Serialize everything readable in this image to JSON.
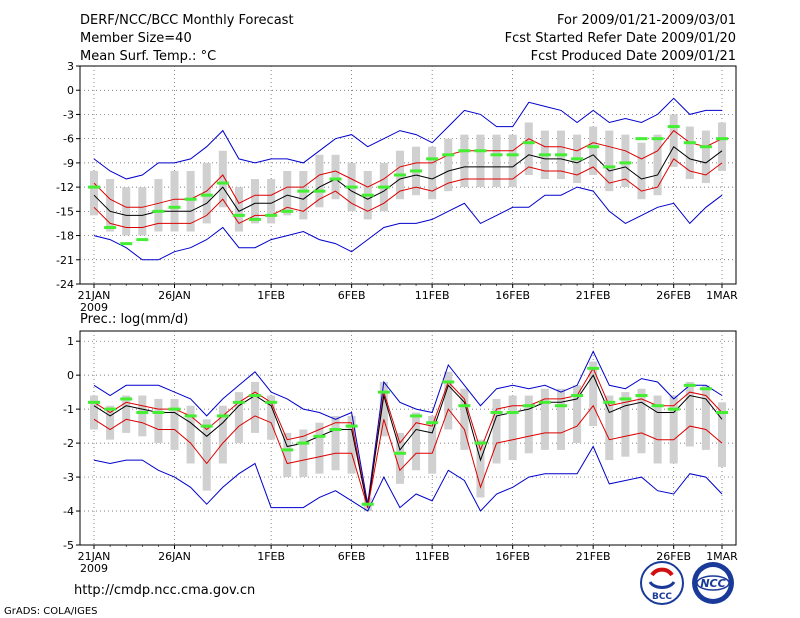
{
  "header": {
    "title": "DERF/NCC/BCC Monthly Forecast",
    "member_size": "Member Size=40",
    "period": "For 2009/01/21-2009/03/01",
    "fcst_started": "Fcst Started Refer Date 2009/01/20",
    "fcst_produced": "Fcst Produced Date 2009/01/21"
  },
  "footer": {
    "url": "http://cmdp.ncc.cma.gov.cn",
    "grads": "GrADS: COLA/IGES",
    "logo_bcc": "BCC",
    "logo_ncc": "NCC"
  },
  "colors": {
    "envelope": "#0000cc",
    "spread": "#dd0000",
    "mean": "#000000",
    "box": "#d0d0d0",
    "obs": "#44ee33",
    "grid": "#555555"
  },
  "chart_data": [
    {
      "type": "line",
      "title": "Mean Surf. Temp.: °C",
      "xlabel": "",
      "ylabel": "",
      "ylim": [
        -24,
        3
      ],
      "yticks": [
        "3",
        "0",
        "-3",
        "-6",
        "-9",
        "-12",
        "-15",
        "-18",
        "-21",
        "-24"
      ],
      "xticks": [
        {
          "day": 1,
          "label": "21JAN",
          "sublabel": "2009"
        },
        {
          "day": 6,
          "label": "26JAN"
        },
        {
          "day": 12,
          "label": "1FEB"
        },
        {
          "day": 17,
          "label": "6FEB"
        },
        {
          "day": 22,
          "label": "11FEB"
        },
        {
          "day": 27,
          "label": "16FEB"
        },
        {
          "day": 32,
          "label": "21FEB"
        },
        {
          "day": 37,
          "label": "26FEB"
        },
        {
          "day": 40,
          "label": "1MAR"
        }
      ],
      "x": [
        1,
        2,
        3,
        4,
        5,
        6,
        7,
        8,
        9,
        10,
        11,
        12,
        13,
        14,
        15,
        16,
        17,
        18,
        19,
        20,
        21,
        22,
        23,
        24,
        25,
        26,
        27,
        28,
        29,
        30,
        31,
        32,
        33,
        34,
        35,
        36,
        37,
        38,
        39,
        40
      ],
      "series": [
        {
          "name": "Maximum",
          "color": "blue",
          "values": [
            -8.5,
            -10,
            -11,
            -10.5,
            -9,
            -9,
            -8.5,
            -7,
            -5,
            -8.5,
            -9,
            -8.5,
            -8.5,
            -9,
            -7.5,
            -6,
            -5.5,
            -7,
            -6,
            -5,
            -5.5,
            -6.5,
            -4.5,
            -2.5,
            -3,
            -4.5,
            -4.5,
            -1.5,
            -2,
            -2.5,
            -4,
            -2.5,
            -4,
            -3.5,
            -4,
            -3,
            -1,
            -3,
            -2.5,
            -2.5
          ]
        },
        {
          "name": "Mean + 1 SD",
          "color": "red",
          "values": [
            -11.5,
            -13.5,
            -14.5,
            -14.5,
            -14,
            -13.5,
            -13.5,
            -12.5,
            -10.5,
            -14,
            -13,
            -13,
            -12,
            -12,
            -10.5,
            -10,
            -11,
            -12,
            -11,
            -9.5,
            -9,
            -9,
            -8,
            -7.5,
            -7.5,
            -7.5,
            -7.5,
            -6,
            -7,
            -7,
            -7.5,
            -6.5,
            -7,
            -7.5,
            -8.5,
            -7.5,
            -5,
            -6.5,
            -7,
            -6
          ]
        },
        {
          "name": "Ensemble Mean",
          "color": "black",
          "values": [
            -13,
            -15,
            -15.5,
            -15.5,
            -15,
            -15,
            -15,
            -14,
            -12,
            -15,
            -14,
            -14,
            -13,
            -13.5,
            -12,
            -11,
            -12.5,
            -13.5,
            -12.5,
            -11,
            -10.5,
            -11,
            -10,
            -9.5,
            -9.5,
            -9.5,
            -9.5,
            -8,
            -8.5,
            -8.5,
            -9,
            -8,
            -10,
            -9.5,
            -11,
            -10.5,
            -7,
            -8.5,
            -9,
            -7.5
          ]
        },
        {
          "name": "Mean - 1 SD",
          "color": "red",
          "values": [
            -14.5,
            -16.5,
            -17,
            -17,
            -16.5,
            -16.5,
            -16.5,
            -15.5,
            -13.5,
            -16.5,
            -15.5,
            -15.5,
            -14.5,
            -15,
            -13.5,
            -12.5,
            -14,
            -15,
            -14,
            -12.5,
            -12,
            -12.5,
            -11.5,
            -11,
            -11,
            -11,
            -11,
            -9.5,
            -10,
            -10,
            -10.5,
            -9.5,
            -11.5,
            -11,
            -12.5,
            -12,
            -8.5,
            -10,
            -10.5,
            -9
          ]
        },
        {
          "name": "Minimum",
          "color": "blue",
          "values": [
            -18,
            -18.5,
            -19.5,
            -21,
            -21,
            -20,
            -19.5,
            -18.5,
            -17,
            -19.5,
            -19.5,
            -18.5,
            -18,
            -17.5,
            -18.5,
            -19,
            -20,
            -18.5,
            -17,
            -16.5,
            -16.5,
            -16,
            -15,
            -14,
            -16.5,
            -15.5,
            -14.5,
            -14.5,
            -13,
            -13,
            -12,
            -12.5,
            -15,
            -16.5,
            -15.5,
            -14.5,
            -14,
            -16.5,
            -14.5,
            -13
          ]
        }
      ],
      "boxes": {
        "upper": [
          -10,
          -11,
          -12,
          -12,
          -11,
          -10,
          -10,
          -9,
          -7.5,
          -12,
          -11,
          -11,
          -10,
          -10,
          -8,
          -8,
          -9,
          -10,
          -9,
          -7.5,
          -7,
          -7,
          -6,
          -5.5,
          -5.5,
          -5.5,
          -5.5,
          -4,
          -5,
          -5,
          -5.5,
          -4.5,
          -5,
          -5.5,
          -6.5,
          -5.5,
          -3,
          -4.5,
          -5,
          -4
        ],
        "lower": [
          -15.5,
          -17.5,
          -18,
          -18,
          -17.5,
          -17.5,
          -17.5,
          -16.5,
          -14.5,
          -17.5,
          -16.5,
          -16.5,
          -15.5,
          -16,
          -14.5,
          -13.5,
          -15,
          -16,
          -15,
          -13.5,
          -13,
          -13.5,
          -12.5,
          -12,
          -12,
          -12,
          -12,
          -10.5,
          -11,
          -11,
          -11.5,
          -10.5,
          -12.5,
          -12,
          -13.5,
          -13,
          -9.5,
          -11,
          -11.5,
          -10
        ]
      },
      "observations": [
        -12,
        -17,
        -19,
        -18.5,
        -15,
        -14.5,
        -13.5,
        -13,
        -11.5,
        -15.5,
        -16,
        -15.5,
        -15,
        -12.5,
        -12.5,
        -11,
        -12,
        -13,
        -12,
        -10.5,
        -10,
        -8.5,
        -8,
        -7.5,
        -7.5,
        -8,
        -8,
        -6.5,
        -8,
        -8,
        -8.5,
        -7,
        -9.5,
        -9,
        -6,
        -6,
        -4.5,
        -6.5,
        -7,
        -6
      ]
    },
    {
      "type": "line",
      "title": "Prec.: log(mm/d)",
      "xlabel": "",
      "ylabel": "",
      "ylim": [
        -5,
        1.3
      ],
      "yticks": [
        "1",
        "0",
        "-1",
        "-2",
        "-3",
        "-4",
        "-5"
      ],
      "xticks": [
        {
          "day": 1,
          "label": "21JAN",
          "sublabel": "2009"
        },
        {
          "day": 6,
          "label": "26JAN"
        },
        {
          "day": 12,
          "label": "1FEB"
        },
        {
          "day": 17,
          "label": "6FEB"
        },
        {
          "day": 22,
          "label": "11FEB"
        },
        {
          "day": 27,
          "label": "16FEB"
        },
        {
          "day": 32,
          "label": "21FEB"
        },
        {
          "day": 37,
          "label": "26FEB"
        },
        {
          "day": 40,
          "label": "1MAR"
        }
      ],
      "x": [
        1,
        2,
        3,
        4,
        5,
        6,
        7,
        8,
        9,
        10,
        11,
        12,
        13,
        14,
        15,
        16,
        17,
        18,
        19,
        20,
        21,
        22,
        23,
        24,
        25,
        26,
        27,
        28,
        29,
        30,
        31,
        32,
        33,
        34,
        35,
        36,
        37,
        38,
        39,
        40
      ],
      "series": [
        {
          "name": "Maximum",
          "color": "blue",
          "values": [
            -0.3,
            -0.6,
            -0.3,
            -0.3,
            -0.3,
            -0.5,
            -0.7,
            -1.2,
            -0.7,
            -0.3,
            0.1,
            -0.5,
            -0.7,
            -1.0,
            -1.1,
            -1.3,
            -1.1,
            -3.8,
            -0.2,
            -0.8,
            -1.0,
            -1.1,
            0.3,
            -0.3,
            -0.9,
            -0.4,
            -0.3,
            -0.4,
            -0.3,
            -0.5,
            -0.3,
            0.7,
            -0.3,
            -0.4,
            -0.1,
            -0.2,
            -0.7,
            -0.3,
            -0.3,
            -0.6
          ]
        },
        {
          "name": "Mean + 1 SD",
          "color": "red",
          "values": [
            -0.8,
            -1.1,
            -0.8,
            -0.9,
            -1.0,
            -1.0,
            -1.2,
            -1.6,
            -1.2,
            -0.8,
            -0.5,
            -0.8,
            -1.9,
            -1.8,
            -1.6,
            -1.4,
            -1.4,
            -3.9,
            -0.5,
            -2.0,
            -1.4,
            -1.5,
            -0.2,
            -0.7,
            -2.2,
            -1.0,
            -0.9,
            -0.9,
            -0.7,
            -0.7,
            -0.6,
            0.2,
            -0.9,
            -0.8,
            -0.7,
            -0.9,
            -0.9,
            -0.5,
            -0.6,
            -1.1
          ]
        },
        {
          "name": "Ensemble Mean",
          "color": "black",
          "values": [
            -0.9,
            -1.2,
            -0.9,
            -1.0,
            -1.1,
            -1.1,
            -1.4,
            -1.8,
            -1.4,
            -0.9,
            -0.6,
            -0.9,
            -2.1,
            -2.0,
            -1.8,
            -1.6,
            -1.6,
            -3.9,
            -0.6,
            -2.2,
            -1.6,
            -1.7,
            -0.3,
            -0.8,
            -2.5,
            -1.2,
            -1.1,
            -1.0,
            -0.8,
            -0.8,
            -0.7,
            0.0,
            -1.1,
            -0.9,
            -0.8,
            -1.1,
            -1.1,
            -0.6,
            -0.7,
            -1.3
          ]
        },
        {
          "name": "Mean - 1 SD",
          "color": "red",
          "values": [
            -1.3,
            -1.6,
            -1.3,
            -1.4,
            -1.6,
            -1.6,
            -2.0,
            -2.6,
            -2.0,
            -1.5,
            -1.2,
            -1.4,
            -2.6,
            -2.5,
            -2.4,
            -2.3,
            -2.3,
            -3.9,
            -1.3,
            -2.8,
            -2.3,
            -2.3,
            -1.0,
            -1.6,
            -3.3,
            -2.0,
            -1.9,
            -1.8,
            -1.7,
            -1.7,
            -1.5,
            -0.9,
            -1.9,
            -1.8,
            -1.7,
            -1.9,
            -1.9,
            -1.5,
            -1.6,
            -2.0
          ]
        },
        {
          "name": "Minimum",
          "color": "blue",
          "values": [
            -2.5,
            -2.6,
            -2.5,
            -2.5,
            -2.8,
            -3.0,
            -3.3,
            -3.8,
            -3.3,
            -2.9,
            -2.6,
            -3.9,
            -3.9,
            -3.9,
            -3.6,
            -3.4,
            -3.7,
            -4.0,
            -3.0,
            -3.9,
            -3.5,
            -3.7,
            -2.8,
            -3.1,
            -4.0,
            -3.5,
            -3.3,
            -3.0,
            -2.9,
            -2.9,
            -2.9,
            -2.1,
            -3.2,
            -3.1,
            -3.0,
            -3.4,
            -3.5,
            -2.9,
            -3.0,
            -3.5
          ]
        }
      ],
      "boxes": {
        "upper": [
          -0.6,
          -0.9,
          -0.6,
          -0.6,
          -0.7,
          -0.7,
          -0.9,
          -1.3,
          -0.9,
          -0.5,
          -0.2,
          -0.6,
          -1.7,
          -1.6,
          -1.4,
          -1.2,
          -1.2,
          -3.6,
          -0.2,
          -1.7,
          -1.1,
          -1.2,
          0.1,
          -0.4,
          -1.9,
          -0.7,
          -0.6,
          -0.6,
          -0.4,
          -0.4,
          -0.3,
          0.4,
          -0.6,
          -0.5,
          -0.4,
          -0.6,
          -0.6,
          -0.2,
          -0.3,
          -0.8
        ]
      },
      "boxes_lower": [
        -1.6,
        -1.9,
        -1.7,
        -1.8,
        -2.0,
        -2.2,
        -2.6,
        -3.4,
        -2.6,
        -2.0,
        -1.7,
        -1.9,
        -3.0,
        -3.0,
        -2.9,
        -2.8,
        -2.9,
        -4.0,
        -1.8,
        -3.2,
        -2.8,
        -2.9,
        -1.6,
        -2.2,
        -3.6,
        -2.6,
        -2.5,
        -2.3,
        -2.2,
        -2.2,
        -2.0,
        -1.5,
        -2.5,
        -2.4,
        -2.3,
        -2.6,
        -2.6,
        -2.1,
        -2.2,
        -2.7
      ],
      "observations": [
        -0.8,
        -1.0,
        -0.7,
        -1.1,
        -1.1,
        -1.0,
        -1.2,
        -1.5,
        -1.2,
        -0.8,
        -0.6,
        -0.8,
        -2.2,
        -2.0,
        -1.8,
        -1.6,
        -1.5,
        -3.8,
        -0.5,
        -2.3,
        -1.2,
        -1.4,
        -0.2,
        -0.9,
        -2.0,
        -1.1,
        -1.1,
        -0.9,
        -0.8,
        -0.9,
        -0.6,
        0.2,
        -0.8,
        -0.7,
        -0.6,
        -0.9,
        -1.0,
        -0.3,
        -0.4,
        -1.1
      ]
    }
  ]
}
